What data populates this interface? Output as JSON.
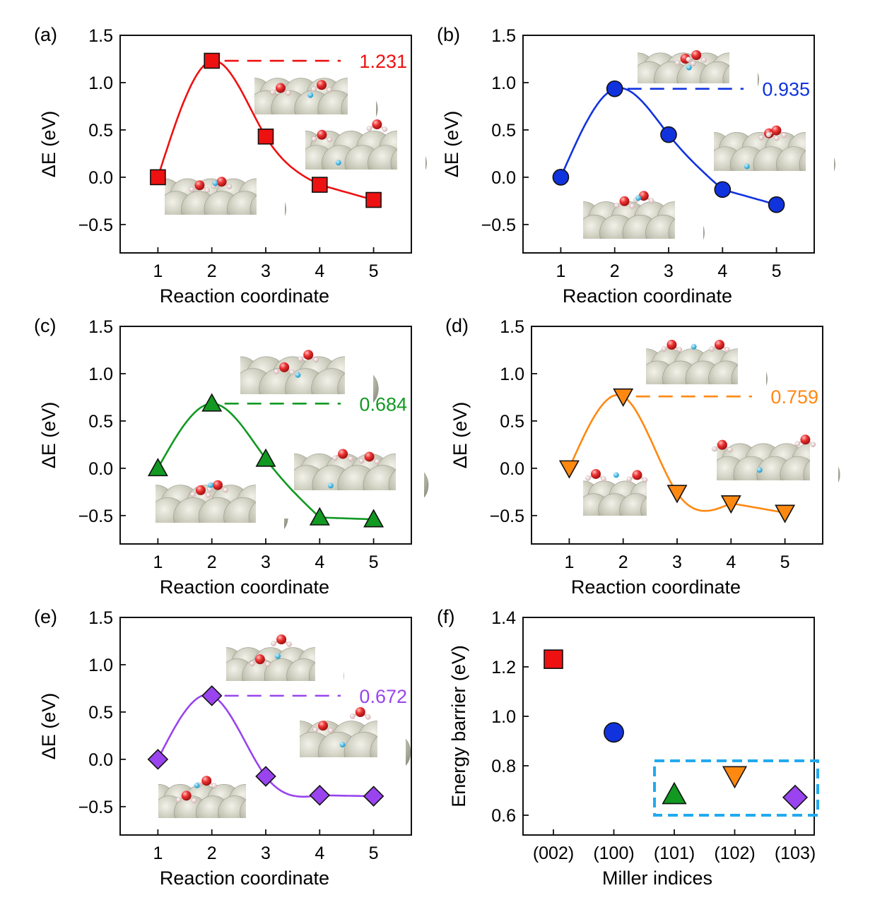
{
  "figure": {
    "title": "",
    "colors": {
      "red": "#ee1111",
      "blue": "#1133dd",
      "green": "#119922",
      "orange": "#ff8811",
      "purple": "#9944ee",
      "highlight_box": "#22aaee",
      "surface": "#bbbbaa",
      "oxygen": "#ee3333",
      "hydrogen": "#f4dddd",
      "adatom": "#33bbee"
    }
  },
  "chart_data": [
    {
      "id": "a",
      "panel_label": "(a)",
      "type": "line",
      "xlabel": "Reaction coordinate",
      "ylabel": "ΔE (eV)",
      "xlim": [
        0.3,
        5.7
      ],
      "ylim": [
        -0.8,
        1.5
      ],
      "xticks": [
        "1",
        "2",
        "3",
        "4",
        "5"
      ],
      "yticks": [
        "1.5",
        "1.0",
        "0.5",
        "0.0",
        "−0.5"
      ],
      "x": [
        1,
        2,
        3,
        4,
        5
      ],
      "y": [
        0.0,
        1.231,
        0.43,
        -0.08,
        -0.24
      ],
      "marker": "square",
      "color": "#ee1111",
      "barrier_label": "1.231",
      "grid": false
    },
    {
      "id": "b",
      "panel_label": "(b)",
      "type": "line",
      "xlabel": "Reaction coordinate",
      "ylabel": "ΔE (eV)",
      "xlim": [
        0.3,
        5.7
      ],
      "ylim": [
        -0.8,
        1.5
      ],
      "xticks": [
        "1",
        "2",
        "3",
        "4",
        "5"
      ],
      "yticks": [
        "1.5",
        "1.0",
        "0.5",
        "0.0",
        "−0.5"
      ],
      "x": [
        1,
        2,
        3,
        4,
        5
      ],
      "y": [
        0.0,
        0.935,
        0.45,
        -0.13,
        -0.29
      ],
      "marker": "circle",
      "color": "#1133dd",
      "barrier_label": "0.935",
      "grid": false
    },
    {
      "id": "c",
      "panel_label": "(c)",
      "type": "line",
      "xlabel": "Reaction coordinate",
      "ylabel": "ΔE (eV)",
      "xlim": [
        0.3,
        5.7
      ],
      "ylim": [
        -0.8,
        1.5
      ],
      "xticks": [
        "1",
        "2",
        "3",
        "4",
        "5"
      ],
      "yticks": [
        "1.5",
        "1.0",
        "0.5",
        "0.0",
        "−0.5"
      ],
      "x": [
        1,
        2,
        3,
        4,
        5
      ],
      "y": [
        0.0,
        0.684,
        0.1,
        -0.52,
        -0.54
      ],
      "marker": "triangle-up",
      "color": "#119922",
      "barrier_label": "0.684",
      "grid": false
    },
    {
      "id": "d",
      "panel_label": "(d)",
      "type": "line",
      "xlabel": "Reaction coordinate",
      "ylabel": "ΔE (eV)",
      "xlim": [
        0.3,
        5.7
      ],
      "ylim": [
        -0.8,
        1.5
      ],
      "xticks": [
        "1",
        "2",
        "3",
        "4",
        "5"
      ],
      "yticks": [
        "1.5",
        "1.0",
        "0.5",
        "0.0",
        "−0.5"
      ],
      "x": [
        1,
        2,
        3,
        4,
        5
      ],
      "y": [
        0.0,
        0.759,
        -0.26,
        -0.37,
        -0.47
      ],
      "marker": "triangle-down",
      "color": "#ff8811",
      "barrier_label": "0.759",
      "grid": false
    },
    {
      "id": "e",
      "panel_label": "(e)",
      "type": "line",
      "xlabel": "Reaction coordinate",
      "ylabel": "ΔE (eV)",
      "xlim": [
        0.3,
        5.7
      ],
      "ylim": [
        -0.8,
        1.5
      ],
      "xticks": [
        "1",
        "2",
        "3",
        "4",
        "5"
      ],
      "yticks": [
        "1.5",
        "1.0",
        "0.5",
        "0.0",
        "−0.5"
      ],
      "x": [
        1,
        2,
        3,
        4,
        5
      ],
      "y": [
        0.0,
        0.672,
        -0.18,
        -0.38,
        -0.39
      ],
      "marker": "diamond",
      "color": "#9944ee",
      "barrier_label": "0.672",
      "grid": false
    },
    {
      "id": "f",
      "panel_label": "(f)",
      "type": "scatter",
      "xlabel": "Miller indices",
      "ylabel": "Energy barrier (eV)",
      "ylim": [
        0.52,
        1.4
      ],
      "categories": [
        "(002)",
        "(100)",
        "(101)",
        "(102)",
        "(103)"
      ],
      "yticks": [
        "1.4",
        "1.2",
        "1.0",
        "0.8",
        "0.6"
      ],
      "values": [
        1.231,
        0.935,
        0.684,
        0.759,
        0.672
      ],
      "markers": [
        "square",
        "circle",
        "triangle-up",
        "triangle-down",
        "diamond"
      ],
      "colors": [
        "#ee1111",
        "#1133dd",
        "#119922",
        "#ff8811",
        "#9944ee"
      ],
      "highlight": {
        "categories": [
          "(101)",
          "(102)",
          "(103)"
        ],
        "ylim": [
          0.6,
          0.82
        ],
        "style": "dashed",
        "color": "#22aaee"
      },
      "grid": false
    }
  ]
}
